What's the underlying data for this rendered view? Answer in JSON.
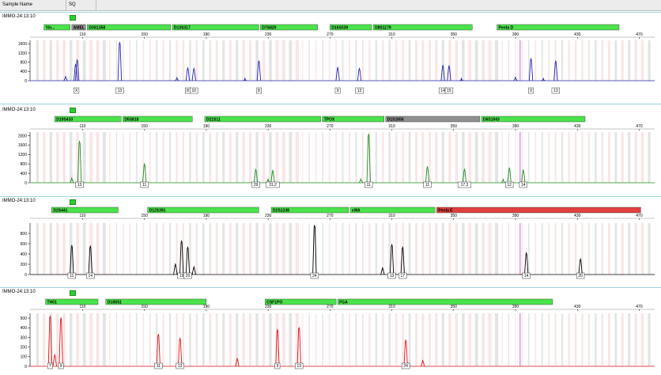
{
  "header": {
    "col1": "Sample Name",
    "col2": "SQ"
  },
  "colors": {
    "blue": "#2222aa",
    "green": "#1a8a1a",
    "black": "#000000",
    "red": "#dd1111",
    "bin_fill": "#f6dcdc",
    "bin_gray": "#d8d8d8",
    "marker_green": "#4ce24c",
    "marker_gray": "#909090",
    "marker_red": "#e04040",
    "magenta": "#cc33cc"
  },
  "chart_data": [
    {
      "type": "line",
      "sample": "IMMO-24:13:10",
      "color": "blue",
      "x_ticks": [
        110,
        150,
        190,
        230,
        270,
        310,
        350,
        390,
        430,
        470
      ],
      "y_ticks": [
        0,
        400,
        800,
        1200,
        1600
      ],
      "ylim": [
        0,
        1750
      ],
      "markers": [
        {
          "label": "Yin...",
          "x0": 85,
          "x1": 103,
          "style": "green"
        },
        {
          "label": "AMEL",
          "x0": 103,
          "x1": 113,
          "style": "gray"
        },
        {
          "label": "D3S1358",
          "x0": 113,
          "x1": 168,
          "style": "green"
        },
        {
          "label": "D13S317",
          "x0": 168,
          "x1": 225,
          "style": "green"
        },
        {
          "label": "D7S820",
          "x0": 225,
          "x1": 263,
          "style": "green"
        },
        {
          "label": "D16S539",
          "x0": 270,
          "x1": 298,
          "style": "green"
        },
        {
          "label": "D8S1179",
          "x0": 298,
          "x1": 363,
          "style": "green"
        },
        {
          "label": "Penta D",
          "x0": 378,
          "x1": 458,
          "style": "green"
        }
      ],
      "peaks": [
        {
          "x": 105.5,
          "h": 700
        },
        {
          "x": 106.5,
          "h": 900
        },
        {
          "x": 134,
          "h": 1650
        },
        {
          "x": 178,
          "h": 550
        },
        {
          "x": 182,
          "h": 530
        },
        {
          "x": 224,
          "h": 850
        },
        {
          "x": 275,
          "h": 570
        },
        {
          "x": 289,
          "h": 530
        },
        {
          "x": 343,
          "h": 660
        },
        {
          "x": 347,
          "h": 640
        },
        {
          "x": 400,
          "h": 950
        },
        {
          "x": 416,
          "h": 850
        }
      ],
      "small_peaks": [
        {
          "x": 99,
          "h": 180
        },
        {
          "x": 171,
          "h": 130
        },
        {
          "x": 215,
          "h": 100
        },
        {
          "x": 355,
          "h": 100
        },
        {
          "x": 390,
          "h": 150
        },
        {
          "x": 408,
          "h": 100
        }
      ],
      "allele_labels": [
        {
          "x": 106,
          "text": "X"
        },
        {
          "x": 134,
          "text": "13"
        },
        {
          "x": 178,
          "text": "8"
        },
        {
          "x": 182,
          "text": "10"
        },
        {
          "x": 224,
          "text": "8"
        },
        {
          "x": 275,
          "text": "9"
        },
        {
          "x": 289,
          "text": "13"
        },
        {
          "x": 343,
          "text": "14"
        },
        {
          "x": 347,
          "text": "15"
        },
        {
          "x": 400,
          "text": "9"
        },
        {
          "x": 416,
          "text": "13"
        }
      ]
    },
    {
      "type": "line",
      "sample": "IMMO-24:13:10",
      "color": "green",
      "x_ticks": [
        110,
        150,
        190,
        230,
        270,
        310,
        350,
        390,
        430,
        470
      ],
      "y_ticks": [
        0,
        400,
        800,
        1200,
        1600,
        2000
      ],
      "ylim": [
        0,
        2150
      ],
      "markers": [
        {
          "label": "D19S433",
          "x0": 92,
          "x1": 136,
          "style": "green"
        },
        {
          "label": "D5S818",
          "x0": 136,
          "x1": 182,
          "style": "green"
        },
        {
          "label": "D21S11",
          "x0": 189,
          "x1": 265,
          "style": "green"
        },
        {
          "label": "TPOX",
          "x0": 265,
          "x1": 306,
          "style": "green"
        },
        {
          "label": "D1S1656",
          "x0": 306,
          "x1": 368,
          "style": "gray"
        },
        {
          "label": "D6S1043",
          "x0": 368,
          "x1": 436,
          "style": "green"
        }
      ],
      "peaks": [
        {
          "x": 108,
          "h": 1750
        },
        {
          "x": 150,
          "h": 800
        },
        {
          "x": 222,
          "h": 560
        },
        {
          "x": 233,
          "h": 520
        },
        {
          "x": 295,
          "h": 2050
        },
        {
          "x": 333,
          "h": 680
        },
        {
          "x": 357,
          "h": 570
        },
        {
          "x": 386,
          "h": 620
        },
        {
          "x": 395,
          "h": 540
        }
      ],
      "small_peaks": [
        {
          "x": 103,
          "h": 200
        },
        {
          "x": 230,
          "h": 150
        },
        {
          "x": 290,
          "h": 160
        },
        {
          "x": 382,
          "h": 140
        }
      ],
      "allele_labels": [
        {
          "x": 108,
          "text": "13"
        },
        {
          "x": 150,
          "text": "11"
        },
        {
          "x": 222,
          "text": "29"
        },
        {
          "x": 233,
          "text": "31.2"
        },
        {
          "x": 295,
          "text": "11"
        },
        {
          "x": 333,
          "text": "11"
        },
        {
          "x": 357,
          "text": "17.3"
        },
        {
          "x": 386,
          "text": "12"
        },
        {
          "x": 395,
          "text": "14"
        }
      ]
    },
    {
      "type": "line",
      "sample": "IMMO-24:13:10",
      "color": "black",
      "x_ticks": [
        110,
        150,
        190,
        230,
        270,
        310,
        350,
        390,
        430,
        470
      ],
      "y_ticks": [
        0,
        200,
        400,
        600,
        800
      ],
      "ylim": [
        0,
        1000
      ],
      "markers": [
        {
          "label": "D2S441",
          "x0": 90,
          "x1": 134,
          "style": "green"
        },
        {
          "label": "D12S391",
          "x0": 152,
          "x1": 225,
          "style": "green"
        },
        {
          "label": "D2S1338",
          "x0": 232,
          "x1": 283,
          "style": "green"
        },
        {
          "label": "vWA",
          "x0": 283,
          "x1": 339,
          "style": "green"
        },
        {
          "label": "Penta E",
          "x0": 339,
          "x1": 472,
          "style": "red"
        }
      ],
      "peaks": [
        {
          "x": 103,
          "h": 560
        },
        {
          "x": 115,
          "h": 550
        },
        {
          "x": 174,
          "h": 650
        },
        {
          "x": 178,
          "h": 530
        },
        {
          "x": 260,
          "h": 950
        },
        {
          "x": 310,
          "h": 580
        },
        {
          "x": 317,
          "h": 530
        },
        {
          "x": 397,
          "h": 420
        },
        {
          "x": 432,
          "h": 300
        }
      ],
      "small_peaks": [
        {
          "x": 170,
          "h": 200
        },
        {
          "x": 182,
          "h": 150
        },
        {
          "x": 304,
          "h": 130
        }
      ],
      "allele_labels": [
        {
          "x": 103,
          "text": "11"
        },
        {
          "x": 115,
          "text": "14"
        },
        {
          "x": 174,
          "text": "19"
        },
        {
          "x": 178,
          "text": "20"
        },
        {
          "x": 260,
          "text": "24"
        },
        {
          "x": 310,
          "text": "13"
        },
        {
          "x": 317,
          "text": "17"
        },
        {
          "x": 397,
          "text": "14"
        },
        {
          "x": 432,
          "text": "20"
        }
      ]
    },
    {
      "type": "line",
      "sample": "IMMO-24:13:10",
      "color": "red",
      "x_ticks": [
        110,
        150,
        190,
        230,
        270,
        310,
        350,
        390,
        430,
        470
      ],
      "y_ticks": [
        0,
        100,
        200,
        300,
        400,
        500
      ],
      "ylim": [
        0,
        550
      ],
      "markers": [
        {
          "label": "TH01",
          "x0": 86,
          "x1": 121,
          "style": "green"
        },
        {
          "label": "D18S51",
          "x0": 125,
          "x1": 191,
          "style": "green"
        },
        {
          "label": "CSF1PO",
          "x0": 228,
          "x1": 275,
          "style": "green"
        },
        {
          "label": "FGA",
          "x0": 275,
          "x1": 415,
          "style": "green"
        }
      ],
      "peaks": [
        {
          "x": 89,
          "h": 520
        },
        {
          "x": 96,
          "h": 500
        },
        {
          "x": 159,
          "h": 330
        },
        {
          "x": 173,
          "h": 290
        },
        {
          "x": 236,
          "h": 380
        },
        {
          "x": 250,
          "h": 400
        },
        {
          "x": 319,
          "h": 270
        }
      ],
      "small_peaks": [
        {
          "x": 92,
          "h": 120
        },
        {
          "x": 210,
          "h": 80
        },
        {
          "x": 330,
          "h": 60
        }
      ],
      "allele_labels": [
        {
          "x": 89,
          "text": "7"
        },
        {
          "x": 96,
          "text": "9"
        },
        {
          "x": 159,
          "text": "11"
        },
        {
          "x": 173,
          "text": "13"
        },
        {
          "x": 236,
          "text": "9"
        },
        {
          "x": 250,
          "text": "13"
        },
        {
          "x": 319,
          "text": "24"
        }
      ]
    }
  ]
}
